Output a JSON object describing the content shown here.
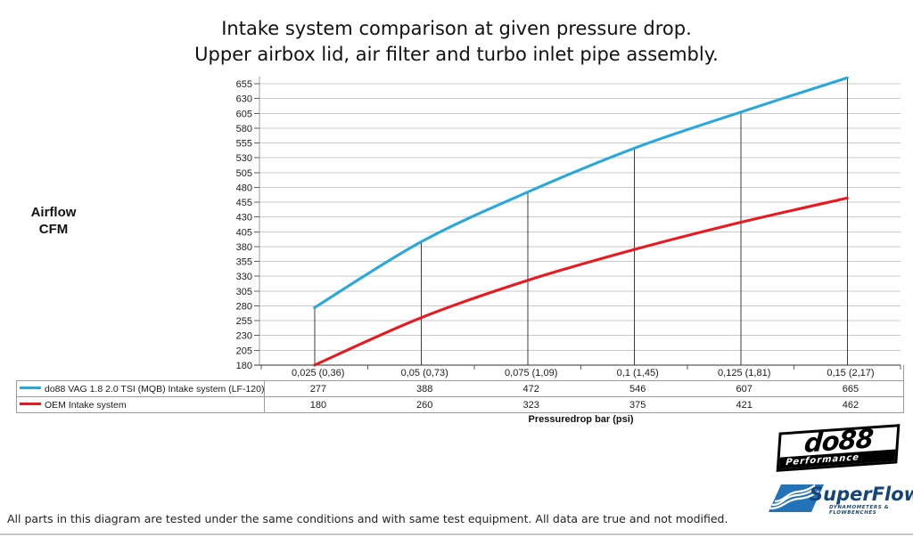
{
  "title": {
    "line1": "Intake system comparison at given pressure drop.",
    "line2": "Upper airbox lid, air filter and turbo inlet pipe assembly."
  },
  "y_axis_label": {
    "line1": "Airflow",
    "line2": "CFM"
  },
  "x_axis_label": "Pressuredrop bar (psi)",
  "footer": "All parts in this diagram are tested under the same conditions and with same test equipment. All data are true and not modified.",
  "colors": {
    "do88_line": "#29a8dc",
    "oem_line": "#e8191f",
    "gridline": "#c9c9c9",
    "y_axis": "#9b9b9b",
    "x_axis": "#333333",
    "tick": "#5f5f5f",
    "drop_line": "#3c3c3c",
    "table_border": "#9a9a9a",
    "superflow_blue": "#2273b8",
    "superflow_navy": "#15447a"
  },
  "chart_data": {
    "type": "line",
    "title": "Intake system comparison at given pressure drop. Upper airbox lid, air filter and turbo inlet pipe assembly.",
    "xlabel": "Pressuredrop bar (psi)",
    "ylabel": "Airflow CFM",
    "categories": [
      "0,025 (0,36)",
      "0,05 (0,73)",
      "0,075 (1,09)",
      "0,1 (1,45)",
      "0,125 (1,81)",
      "0,15 (2,17)"
    ],
    "series": [
      {
        "name": "do88 VAG 1.8 2.0 TSI (MQB) Intake system (LF-120)",
        "color_key": "do88_line",
        "values": [
          277,
          388,
          472,
          546,
          607,
          665
        ]
      },
      {
        "name": "OEM Intake system",
        "color_key": "oem_line",
        "values": [
          180,
          260,
          323,
          375,
          421,
          462
        ]
      }
    ],
    "ylim": [
      180,
      655
    ],
    "ytick_step": 25,
    "grid": true,
    "smooth": true,
    "legend_position": "table-left",
    "drop_lines_from_series": 0
  },
  "logos": {
    "do88": {
      "text": "do88",
      "subtext": "Performance"
    },
    "superflow": {
      "text": "SuperFlow",
      "trademark": "™",
      "tagline": "DYNAMOMETERS & FLOWBENCHES"
    }
  }
}
